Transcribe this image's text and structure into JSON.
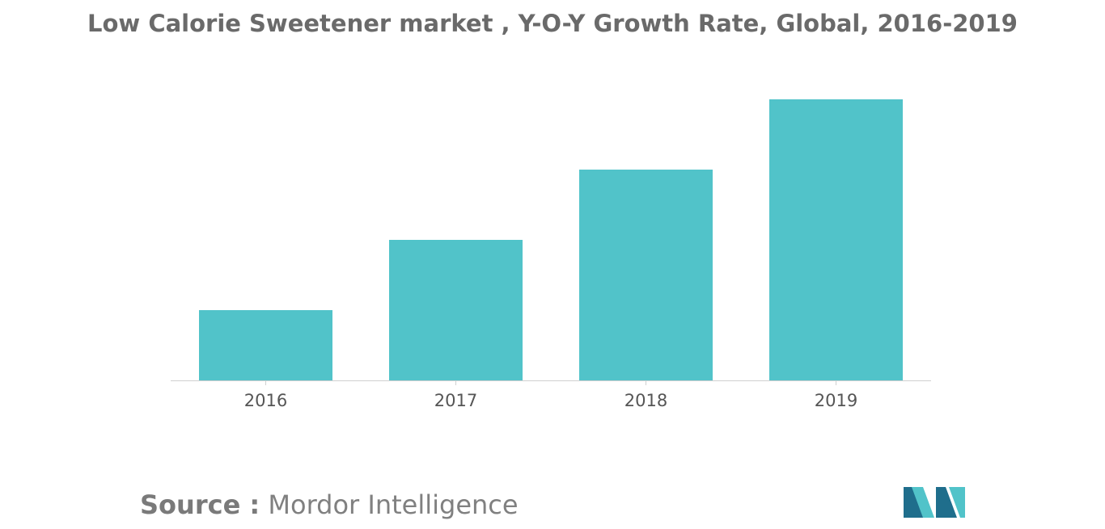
{
  "chart_data": {
    "type": "bar",
    "title": "Low Calorie Sweetener market , Y-O-Y Growth Rate, Global, 2016-2019",
    "xlabel": "",
    "ylabel": "",
    "categories": [
      "2016",
      "2017",
      "2018",
      "2019"
    ],
    "values": [
      1,
      2,
      3,
      4
    ],
    "ylim": [
      0,
      4
    ],
    "grid": false,
    "legend": "none",
    "bar_color": "#51c3c9",
    "axis_color": "#d0d0d0",
    "tick_label_color": "#555555"
  },
  "source": {
    "label": "Source :",
    "name": "Mordor Intelligence"
  },
  "logo": {
    "icon": "mordor-intelligence-logo",
    "color_dark": "#1f6e8c",
    "color_light": "#51c3c9"
  }
}
